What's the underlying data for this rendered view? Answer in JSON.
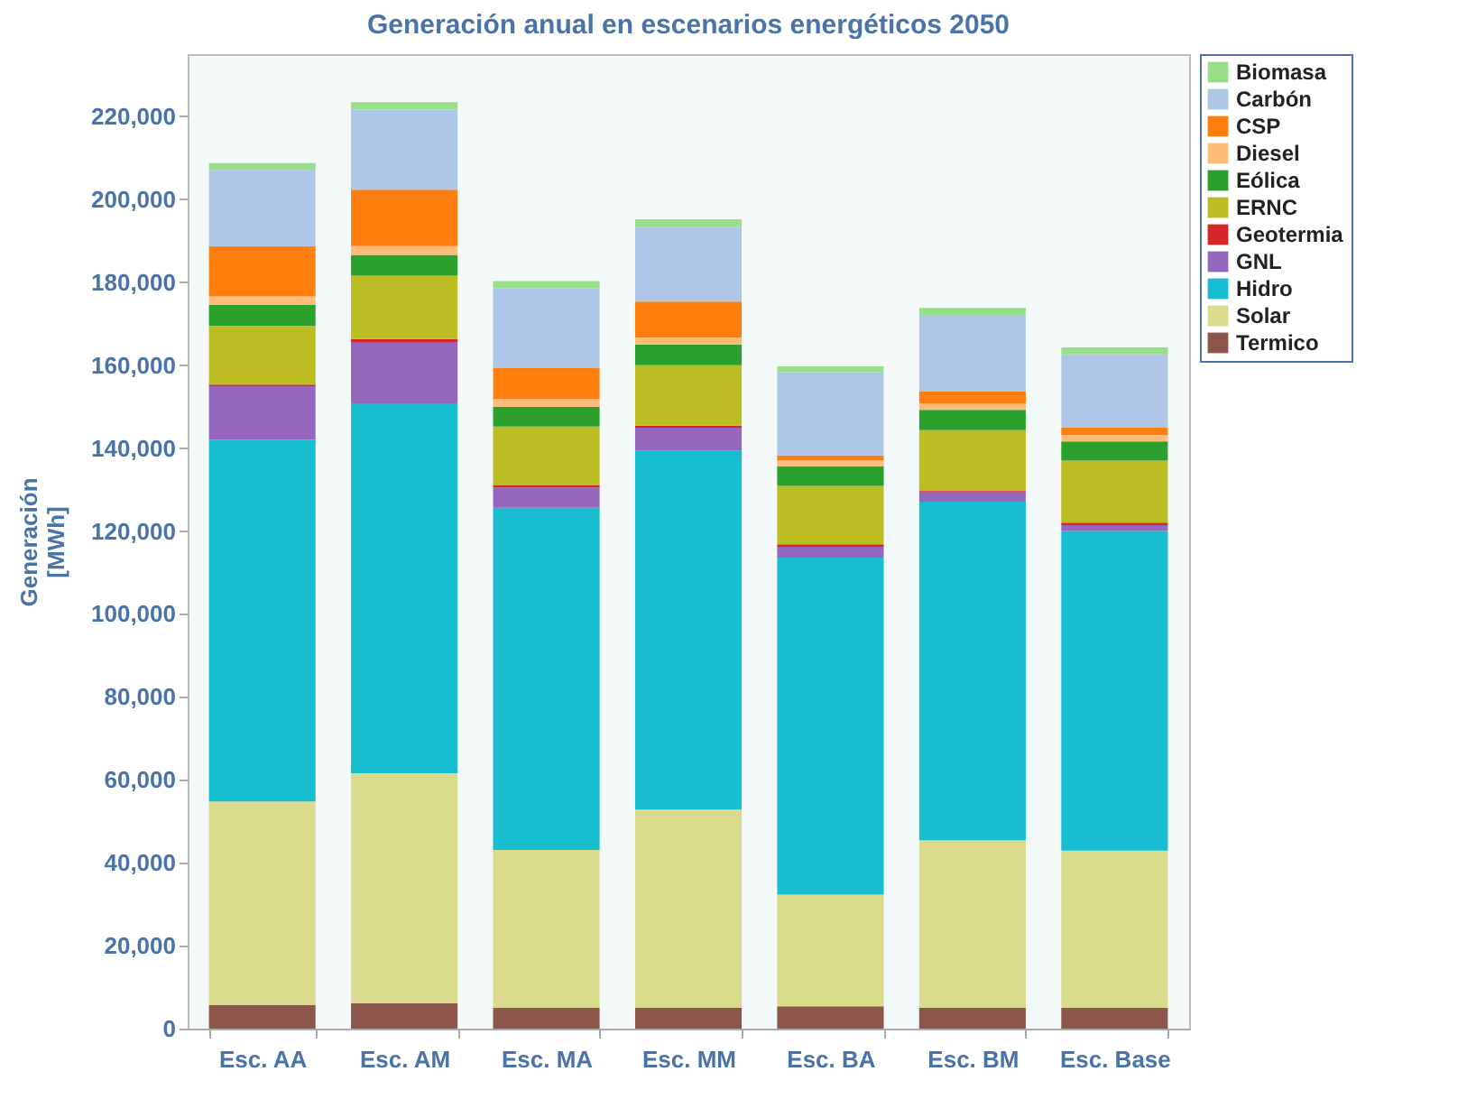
{
  "chart_data": {
    "type": "bar",
    "title": "Generación anual en escenarios energéticos 2050",
    "ylabel": "Generación [MWh]",
    "stacked": true,
    "legend": "top right",
    "grid": false,
    "categories": [
      "Esc. AA",
      "Esc. AM",
      "Esc. MA",
      "Esc. MM",
      "Esc. BA",
      "Esc. BM",
      "Esc. Base"
    ],
    "ylim": [
      0,
      235000
    ],
    "yticks": [
      0,
      {
        "value": 20000,
        "label": "20,000"
      },
      {
        "value": 40000,
        "label": "40,000"
      },
      {
        "value": 60000,
        "label": "60,000"
      },
      {
        "value": 80000,
        "label": "80,000"
      },
      {
        "value": 100000,
        "label": "100,000"
      },
      {
        "value": 120000,
        "label": "120,000"
      },
      {
        "value": 140000,
        "label": "140,000"
      },
      {
        "value": 160000,
        "label": "160,000"
      },
      {
        "value": 180000,
        "label": "180,000"
      },
      {
        "value": 200000,
        "label": "200,000"
      },
      {
        "value": 220000,
        "label": "220,000"
      }
    ],
    "series": [
      {
        "name": "Termico",
        "color": "#8c564b",
        "values": [
          5700,
          6100,
          5000,
          5000,
          5400,
          5000,
          5000
        ]
      },
      {
        "name": "Solar",
        "color": "#dbdb8d",
        "values": [
          49100,
          55500,
          38100,
          47800,
          26900,
          40400,
          37900
        ]
      },
      {
        "name": "Hidro",
        "color": "#17becf",
        "values": [
          87200,
          89200,
          82500,
          86600,
          81300,
          81700,
          77100
        ]
      },
      {
        "name": "GNL",
        "color": "#9467bd",
        "values": [
          12900,
          14600,
          4900,
          5500,
          2600,
          2400,
          1400
        ]
      },
      {
        "name": "Geotermia",
        "color": "#d62728",
        "values": [
          400,
          900,
          500,
          500,
          600,
          300,
          600
        ]
      },
      {
        "name": "ERNC",
        "color": "#bcbd22",
        "values": [
          14200,
          15300,
          14200,
          14600,
          14100,
          14500,
          15000
        ]
      },
      {
        "name": "Eólica",
        "color": "#2ca02c",
        "values": [
          5000,
          5000,
          4700,
          5000,
          4700,
          4900,
          4600
        ]
      },
      {
        "name": "Diesel",
        "color": "#ffbb78",
        "values": [
          2100,
          2100,
          1900,
          1600,
          1400,
          1600,
          1500
        ]
      },
      {
        "name": "CSP",
        "color": "#ff7f0e",
        "values": [
          12100,
          13600,
          7600,
          8700,
          1200,
          2800,
          1800
        ]
      },
      {
        "name": "Carbón",
        "color": "#aec7e8",
        "values": [
          18400,
          19300,
          19200,
          18100,
          20100,
          18500,
          17700
        ]
      },
      {
        "name": "Biomasa",
        "color": "#98df8a",
        "values": [
          1600,
          1800,
          1700,
          1800,
          1400,
          1700,
          1700
        ]
      }
    ]
  }
}
